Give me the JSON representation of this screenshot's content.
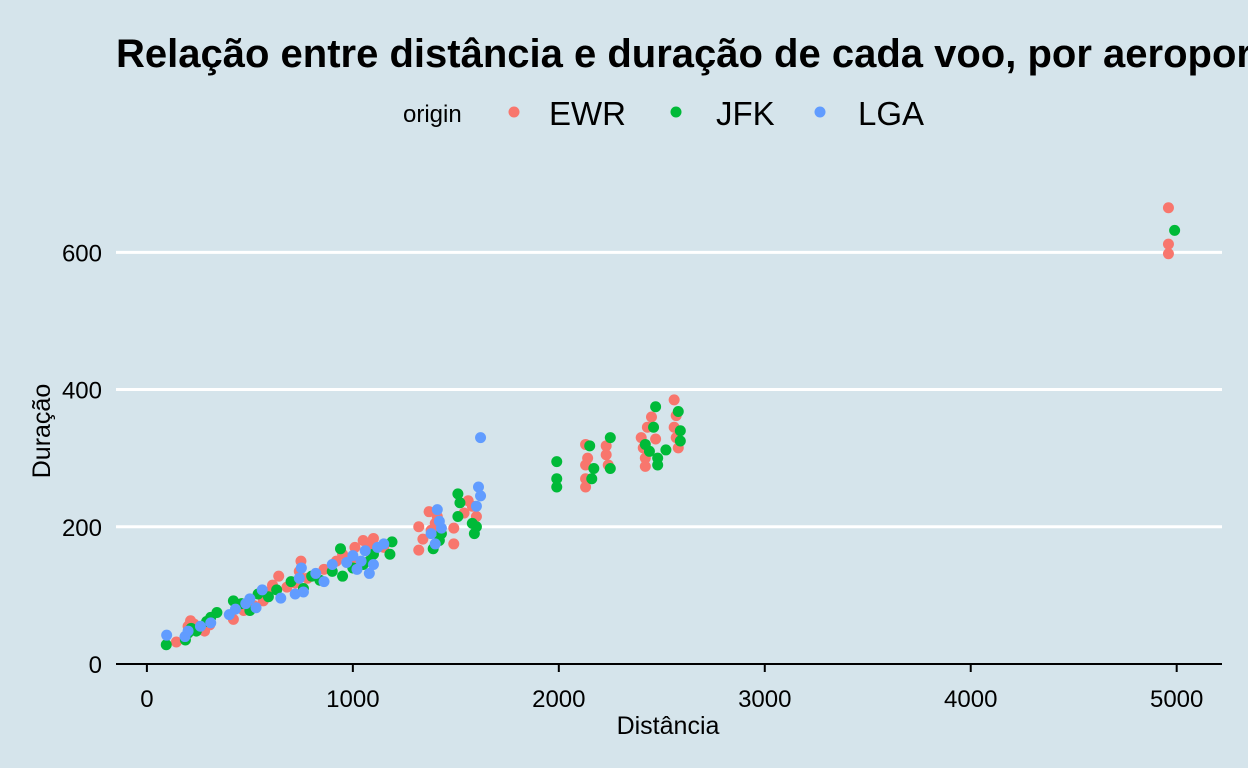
{
  "chart_data": {
    "type": "scatter",
    "title": "Relação entre distância e duração de cada voo, por aeroporto",
    "xlabel": "Distância",
    "ylabel": "Duração",
    "xlim": [
      -150,
      5220
    ],
    "ylim": [
      0,
      720
    ],
    "x_ticks": [
      0,
      1000,
      2000,
      3000,
      4000,
      5000
    ],
    "y_ticks": [
      0,
      200,
      400,
      600
    ],
    "grid": "horizontal major lines only",
    "legend": {
      "title": "origin",
      "position": "top",
      "direction": "horizontal"
    },
    "series": [
      {
        "name": "EWR",
        "color": "#f8766d",
        "points": [
          [
            143,
            32
          ],
          [
            200,
            55
          ],
          [
            212,
            63
          ],
          [
            230,
            58
          ],
          [
            280,
            48
          ],
          [
            305,
            57
          ],
          [
            420,
            65
          ],
          [
            470,
            78
          ],
          [
            520,
            85
          ],
          [
            565,
            92
          ],
          [
            590,
            105
          ],
          [
            610,
            115
          ],
          [
            640,
            128
          ],
          [
            680,
            112
          ],
          [
            720,
            118
          ],
          [
            740,
            135
          ],
          [
            748,
            150
          ],
          [
            780,
            125
          ],
          [
            860,
            138
          ],
          [
            920,
            150
          ],
          [
            950,
            160
          ],
          [
            1000,
            155
          ],
          [
            1010,
            170
          ],
          [
            1030,
            148
          ],
          [
            1050,
            180
          ],
          [
            1070,
            165
          ],
          [
            1085,
            172
          ],
          [
            1100,
            183
          ],
          [
            1150,
            170
          ],
          [
            1320,
            200
          ],
          [
            1320,
            166
          ],
          [
            1340,
            182
          ],
          [
            1370,
            222
          ],
          [
            1380,
            195
          ],
          [
            1400,
            205
          ],
          [
            1410,
            215
          ],
          [
            1490,
            175
          ],
          [
            1490,
            198
          ],
          [
            1540,
            220
          ],
          [
            1560,
            238
          ],
          [
            1580,
            230
          ],
          [
            1600,
            215
          ],
          [
            2130,
            320
          ],
          [
            2130,
            290
          ],
          [
            2130,
            270
          ],
          [
            2130,
            258
          ],
          [
            2140,
            300
          ],
          [
            2230,
            318
          ],
          [
            2230,
            305
          ],
          [
            2240,
            290
          ],
          [
            2400,
            330
          ],
          [
            2410,
            315
          ],
          [
            2420,
            300
          ],
          [
            2420,
            288
          ],
          [
            2430,
            345
          ],
          [
            2450,
            360
          ],
          [
            2470,
            328
          ],
          [
            2560,
            385
          ],
          [
            2560,
            345
          ],
          [
            2570,
            362
          ],
          [
            2570,
            330
          ],
          [
            2580,
            315
          ],
          [
            4960,
            665
          ],
          [
            4960,
            612
          ],
          [
            4960,
            598
          ]
        ]
      },
      {
        "name": "JFK",
        "color": "#00ba38",
        "points": [
          [
            94,
            28
          ],
          [
            187,
            35
          ],
          [
            200,
            45
          ],
          [
            215,
            52
          ],
          [
            240,
            48
          ],
          [
            290,
            62
          ],
          [
            310,
            68
          ],
          [
            340,
            75
          ],
          [
            420,
            92
          ],
          [
            460,
            88
          ],
          [
            500,
            78
          ],
          [
            540,
            102
          ],
          [
            590,
            98
          ],
          [
            630,
            108
          ],
          [
            700,
            120
          ],
          [
            760,
            110
          ],
          [
            800,
            128
          ],
          [
            840,
            122
          ],
          [
            900,
            135
          ],
          [
            940,
            168
          ],
          [
            950,
            128
          ],
          [
            1000,
            140
          ],
          [
            1050,
            145
          ],
          [
            1080,
            150
          ],
          [
            1100,
            160
          ],
          [
            1180,
            160
          ],
          [
            1190,
            178
          ],
          [
            1390,
            168
          ],
          [
            1420,
            180
          ],
          [
            1430,
            190
          ],
          [
            1510,
            215
          ],
          [
            1510,
            248
          ],
          [
            1520,
            235
          ],
          [
            1580,
            205
          ],
          [
            1590,
            190
          ],
          [
            1600,
            200
          ],
          [
            1990,
            258
          ],
          [
            1990,
            270
          ],
          [
            1990,
            295
          ],
          [
            2150,
            318
          ],
          [
            2160,
            270
          ],
          [
            2170,
            285
          ],
          [
            2250,
            330
          ],
          [
            2250,
            285
          ],
          [
            2420,
            320
          ],
          [
            2440,
            310
          ],
          [
            2460,
            345
          ],
          [
            2470,
            375
          ],
          [
            2480,
            290
          ],
          [
            2480,
            300
          ],
          [
            2520,
            312
          ],
          [
            2580,
            368
          ],
          [
            2590,
            340
          ],
          [
            2590,
            325
          ],
          [
            4990,
            632
          ]
        ]
      },
      {
        "name": "LGA",
        "color": "#619cff",
        "points": [
          [
            96,
            42
          ],
          [
            185,
            40
          ],
          [
            200,
            48
          ],
          [
            260,
            55
          ],
          [
            310,
            60
          ],
          [
            400,
            72
          ],
          [
            430,
            80
          ],
          [
            480,
            88
          ],
          [
            500,
            95
          ],
          [
            530,
            82
          ],
          [
            560,
            108
          ],
          [
            650,
            96
          ],
          [
            720,
            102
          ],
          [
            740,
            125
          ],
          [
            750,
            140
          ],
          [
            760,
            105
          ],
          [
            820,
            132
          ],
          [
            860,
            120
          ],
          [
            900,
            145
          ],
          [
            970,
            148
          ],
          [
            1000,
            158
          ],
          [
            1020,
            138
          ],
          [
            1040,
            150
          ],
          [
            1060,
            165
          ],
          [
            1080,
            132
          ],
          [
            1100,
            145
          ],
          [
            1120,
            170
          ],
          [
            1150,
            175
          ],
          [
            1380,
            190
          ],
          [
            1400,
            175
          ],
          [
            1410,
            225
          ],
          [
            1420,
            208
          ],
          [
            1430,
            198
          ],
          [
            1600,
            230
          ],
          [
            1610,
            258
          ],
          [
            1620,
            245
          ],
          [
            1620,
            330
          ]
        ]
      }
    ]
  }
}
